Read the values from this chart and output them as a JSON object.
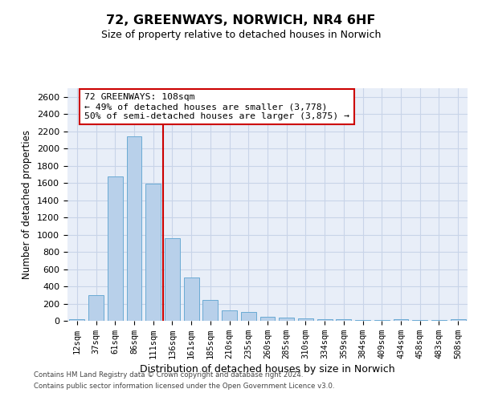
{
  "title": "72, GREENWAYS, NORWICH, NR4 6HF",
  "subtitle": "Size of property relative to detached houses in Norwich",
  "xlabel": "Distribution of detached houses by size in Norwich",
  "ylabel": "Number of detached properties",
  "categories": [
    "12sqm",
    "37sqm",
    "61sqm",
    "86sqm",
    "111sqm",
    "136sqm",
    "161sqm",
    "185sqm",
    "210sqm",
    "235sqm",
    "260sqm",
    "285sqm",
    "310sqm",
    "334sqm",
    "359sqm",
    "384sqm",
    "409sqm",
    "434sqm",
    "458sqm",
    "483sqm",
    "508sqm"
  ],
  "values": [
    20,
    295,
    1680,
    2140,
    1590,
    960,
    500,
    245,
    120,
    100,
    50,
    40,
    25,
    15,
    20,
    5,
    5,
    15,
    5,
    5,
    15
  ],
  "bar_color": "#b8d0ea",
  "bar_edge_color": "#6aaad4",
  "grid_color": "#c8d4e8",
  "background_color": "#e8eef8",
  "vline_color": "#cc0000",
  "vline_x": 4.5,
  "annotation_text": "72 GREENWAYS: 108sqm\n← 49% of detached houses are smaller (3,778)\n50% of semi-detached houses are larger (3,875) →",
  "annotation_box_facecolor": "white",
  "annotation_box_edgecolor": "#cc0000",
  "ylim": [
    0,
    2700
  ],
  "yticks": [
    0,
    200,
    400,
    600,
    800,
    1000,
    1200,
    1400,
    1600,
    1800,
    2000,
    2200,
    2400,
    2600
  ],
  "footer_line1": "Contains HM Land Registry data © Crown copyright and database right 2024.",
  "footer_line2": "Contains public sector information licensed under the Open Government Licence v3.0."
}
